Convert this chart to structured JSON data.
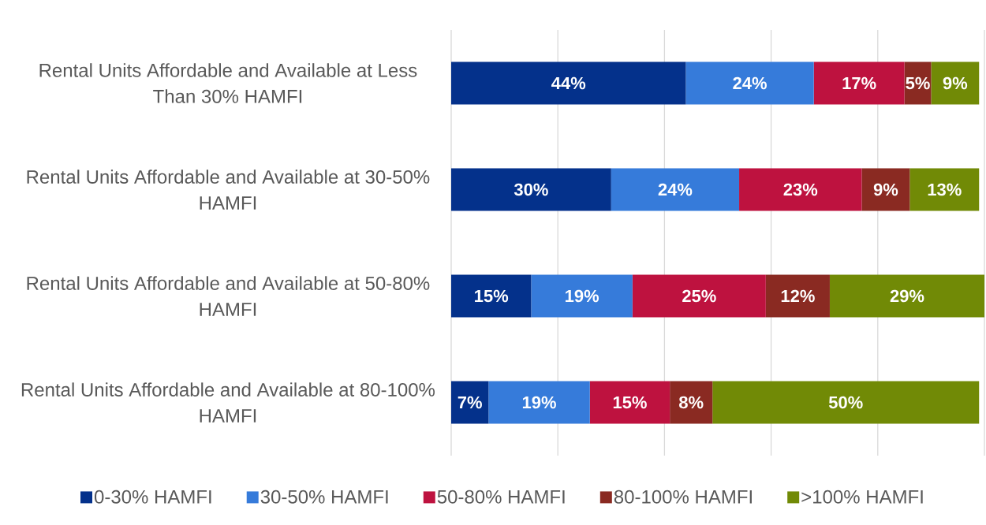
{
  "chart_data": {
    "type": "bar",
    "orientation": "horizontal",
    "stacked": true,
    "categories": [
      "Rental Units Affordable and Available at Less Than 30% HAMFI",
      "Rental Units Affordable and Available at 30-50% HAMFI",
      "Rental Units Affordable and Available at 50-80% HAMFI",
      "Rental Units Affordable and Available at 80-100% HAMFI"
    ],
    "series": [
      {
        "name": "0-30% HAMFI",
        "color": "#04318B",
        "values": [
          44,
          30,
          15,
          7
        ],
        "value_labels": [
          "44%",
          "30%",
          "15%",
          "7%"
        ]
      },
      {
        "name": "30-50% HAMFI",
        "color": "#367BDA",
        "values": [
          24,
          24,
          19,
          19
        ],
        "value_labels": [
          "24%",
          "24%",
          "19%",
          "19%"
        ]
      },
      {
        "name": "50-80% HAMFI",
        "color": "#BE123F",
        "values": [
          17,
          23,
          25,
          15
        ],
        "value_labels": [
          "17%",
          "23%",
          "25%",
          "15%"
        ]
      },
      {
        "name": "80-100% HAMFI",
        "color": "#8A2A22",
        "values": [
          5,
          9,
          12,
          8
        ],
        "value_labels": [
          "5%",
          "9%",
          "12%",
          "8%"
        ]
      },
      {
        "name": ">100% HAMFI",
        "color": "#718A06",
        "values": [
          9,
          13,
          29,
          50
        ],
        "value_labels": [
          "9%",
          "13%",
          "29%",
          "50%"
        ]
      }
    ],
    "grid": "x",
    "legend": "bottom",
    "tick_labels": "y"
  }
}
